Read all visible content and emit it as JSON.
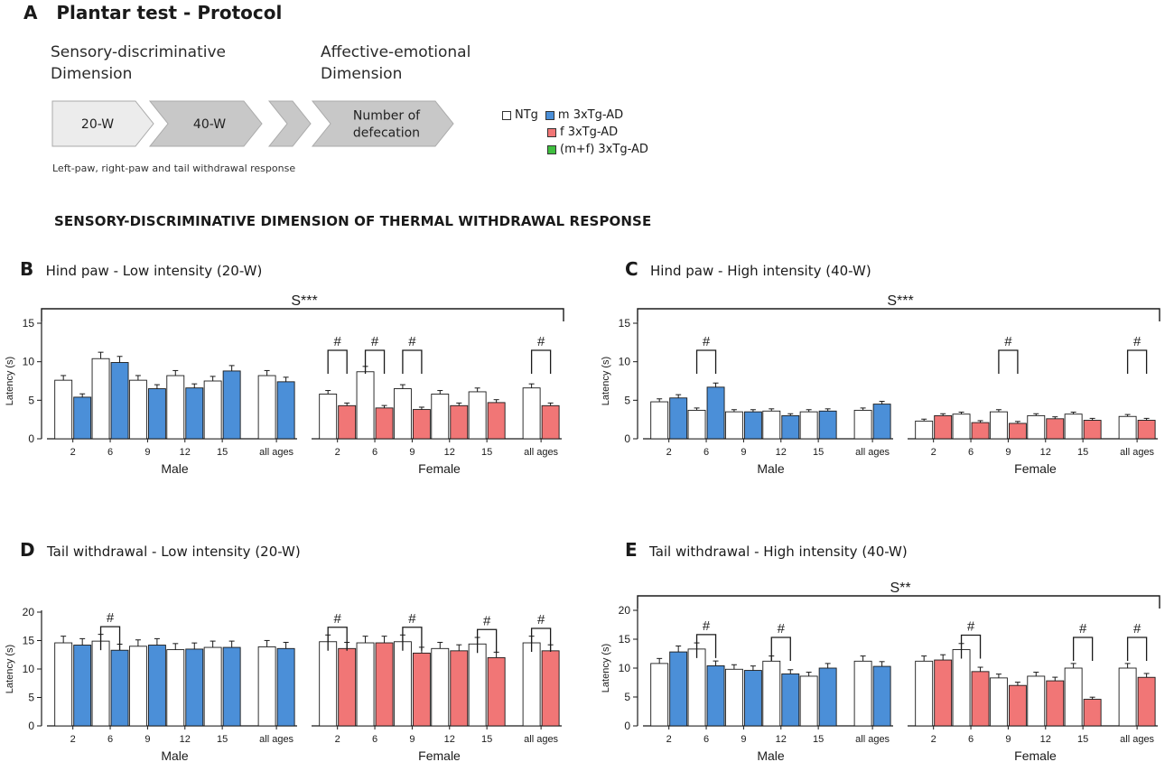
{
  "protocol": {
    "panel_letter": "A",
    "title": "Plantar test - Protocol",
    "sensory_label": [
      "Sensory-discriminative",
      "Dimension"
    ],
    "affective_label": [
      "Affective-emotional",
      "Dimension"
    ],
    "arrows": [
      "20-W",
      "40-W",
      "",
      "Number of|defecation"
    ],
    "note": "Left-paw, right-paw and tail withdrawal response",
    "legend": [
      {
        "label": "NTg",
        "color": "#ffffff"
      },
      {
        "label": "m 3xTg-AD",
        "color": "#4b8fd8"
      },
      {
        "label": "f 3xTg-AD",
        "color": "#f17676"
      },
      {
        "label": "(m+f) 3xTg-AD",
        "color": "#3fbf3f"
      }
    ]
  },
  "section_heading": "SENSORY-DISCRIMINATIVE DIMENSION OF THERMAL WITHDRAWAL RESPONSE",
  "colors": {
    "ntg": "#ffffff",
    "male": "#4b8fd8",
    "female": "#f17676",
    "ink": "#1a1a1a"
  },
  "chart_data": [
    {
      "id": "B",
      "panel_letter": "B",
      "title": "Hind paw - Low intensity (20-W)",
      "type": "bar",
      "ylabel": "Latency (s)",
      "ylim": [
        0,
        15
      ],
      "yticks": [
        0,
        5,
        10,
        15
      ],
      "groups": [
        "Male",
        "Female"
      ],
      "categories": [
        "2",
        "6",
        "9",
        "12",
        "15",
        "all ages"
      ],
      "series": [
        {
          "name": "Male NTg",
          "values": [
            7.6,
            10.4,
            7.6,
            8.2,
            7.5,
            8.2
          ]
        },
        {
          "name": "m 3xTg-AD",
          "values": [
            5.4,
            9.9,
            6.5,
            6.6,
            8.8,
            7.4
          ]
        },
        {
          "name": "Female NTg",
          "values": [
            5.8,
            8.7,
            6.5,
            5.8,
            6.1,
            6.6
          ]
        },
        {
          "name": "f 3xTg-AD",
          "values": [
            4.3,
            4.0,
            3.8,
            4.3,
            4.7,
            4.3
          ]
        }
      ],
      "significance": "S***",
      "hash_marks": [
        {
          "group": "Female",
          "category": "2",
          "label": "#"
        },
        {
          "group": "Female",
          "category": "6",
          "label": "#"
        },
        {
          "group": "Female",
          "category": "9",
          "label": "#"
        },
        {
          "group": "Female",
          "category": "all ages",
          "label": "#"
        }
      ]
    },
    {
      "id": "C",
      "panel_letter": "C",
      "title": "Hind paw - High intensity (40-W)",
      "type": "bar",
      "ylabel": "Latency (s)",
      "ylim": [
        0,
        15
      ],
      "yticks": [
        0,
        5,
        10,
        15
      ],
      "groups": [
        "Male",
        "Female"
      ],
      "categories": [
        "2",
        "6",
        "9",
        "12",
        "15",
        "all ages"
      ],
      "series": [
        {
          "name": "Male NTg",
          "values": [
            4.8,
            3.7,
            3.5,
            3.6,
            3.5,
            3.7
          ]
        },
        {
          "name": "m 3xTg-AD",
          "values": [
            5.3,
            6.7,
            3.5,
            3.0,
            3.6,
            4.5
          ]
        },
        {
          "name": "Female NTg",
          "values": [
            2.3,
            3.2,
            3.5,
            3.0,
            3.2,
            2.9
          ]
        },
        {
          "name": "f 3xTg-AD",
          "values": [
            3.0,
            2.1,
            2.0,
            2.6,
            2.4,
            2.4
          ]
        }
      ],
      "significance": "S***",
      "hash_marks": [
        {
          "group": "Male",
          "category": "6",
          "label": "#"
        },
        {
          "group": "Female",
          "category": "9",
          "label": "#"
        },
        {
          "group": "Female",
          "category": "all ages",
          "label": "#"
        }
      ]
    },
    {
      "id": "D",
      "panel_letter": "D",
      "title": "Tail withdrawal - Low intensity (20-W)",
      "type": "bar",
      "ylabel": "Latency (s)",
      "ylim": [
        0,
        20
      ],
      "yticks": [
        0,
        5,
        10,
        15,
        20
      ],
      "groups": [
        "Male",
        "Female"
      ],
      "categories": [
        "2",
        "6",
        "9",
        "12",
        "15",
        "all ages"
      ],
      "series": [
        {
          "name": "Male NTg",
          "values": [
            14.6,
            14.9,
            14.0,
            13.4,
            13.8,
            13.9
          ]
        },
        {
          "name": "m 3xTg-AD",
          "values": [
            14.2,
            13.3,
            14.2,
            13.5,
            13.8,
            13.6
          ]
        },
        {
          "name": "Female NTg",
          "values": [
            14.8,
            14.6,
            14.8,
            13.6,
            14.4,
            14.6
          ]
        },
        {
          "name": "f 3xTg-AD",
          "values": [
            13.6,
            14.6,
            12.8,
            13.2,
            12.0,
            13.2
          ]
        }
      ],
      "significance": "",
      "hash_marks": [
        {
          "group": "Male",
          "category": "6",
          "label": "#"
        },
        {
          "group": "Female",
          "category": "2",
          "label": "#"
        },
        {
          "group": "Female",
          "category": "9",
          "label": "#"
        },
        {
          "group": "Female",
          "category": "15",
          "label": "#"
        },
        {
          "group": "Female",
          "category": "all ages",
          "label": "#"
        }
      ]
    },
    {
      "id": "E",
      "panel_letter": "E",
      "title": "Tail withdrawal - High intensity (40-W)",
      "type": "bar",
      "ylabel": "Latency (s)",
      "ylim": [
        0,
        20
      ],
      "yticks": [
        0,
        5,
        10,
        15,
        20
      ],
      "groups": [
        "Male",
        "Female"
      ],
      "categories": [
        "2",
        "6",
        "9",
        "12",
        "15",
        "all ages"
      ],
      "series": [
        {
          "name": "Male NTg",
          "values": [
            10.8,
            13.3,
            9.8,
            11.2,
            8.6,
            11.2
          ]
        },
        {
          "name": "m 3xTg-AD",
          "values": [
            12.8,
            10.4,
            9.6,
            9.0,
            10.0,
            10.3
          ]
        },
        {
          "name": "Female NTg",
          "values": [
            11.2,
            13.2,
            8.3,
            8.6,
            10.0,
            10.0
          ]
        },
        {
          "name": "f 3xTg-AD",
          "values": [
            11.4,
            9.4,
            7.0,
            7.8,
            4.6,
            8.4
          ]
        }
      ],
      "significance": "S**",
      "hash_marks": [
        {
          "group": "Male",
          "category": "6",
          "label": "#"
        },
        {
          "group": "Male",
          "category": "12",
          "label": "#"
        },
        {
          "group": "Female",
          "category": "6",
          "label": "#"
        },
        {
          "group": "Female",
          "category": "15",
          "label": "#"
        },
        {
          "group": "Female",
          "category": "all ages",
          "label": "#"
        }
      ]
    }
  ]
}
